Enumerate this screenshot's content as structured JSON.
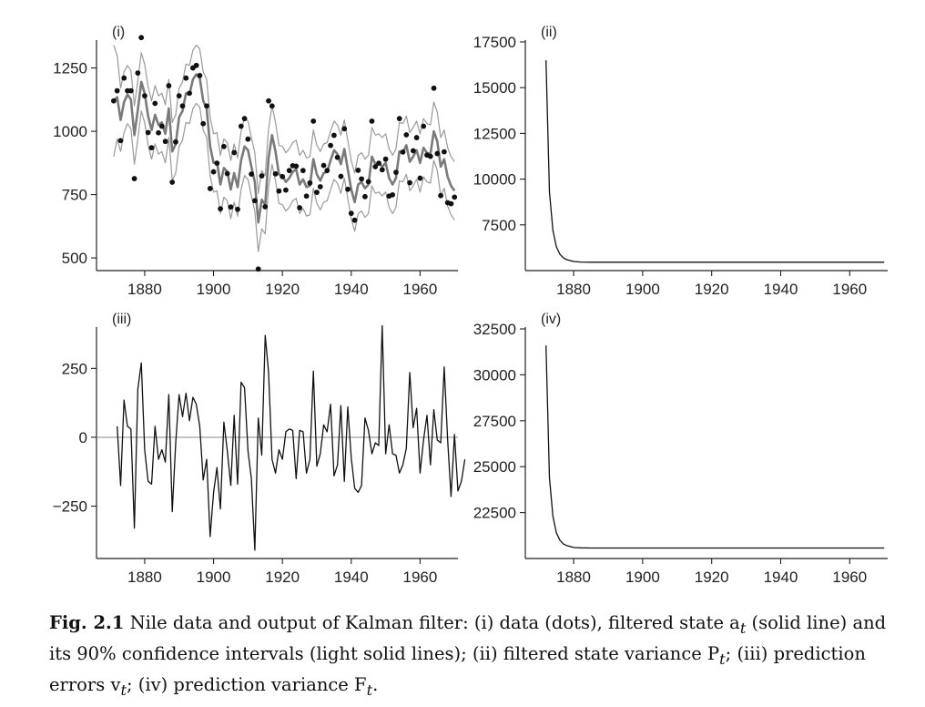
{
  "chart_data": [
    {
      "id": "i",
      "type": "scatter",
      "panel_label": "(i)",
      "title": "",
      "xlabel": "",
      "ylabel": "",
      "xlim": [
        1866,
        1971
      ],
      "ylim": [
        450,
        1360
      ],
      "xticks": [
        1880,
        1900,
        1920,
        1940,
        1960
      ],
      "xtick_labels": [
        "1880",
        "1900",
        "1920",
        "1940",
        "1960"
      ],
      "yticks": [
        500,
        750,
        1000,
        1250
      ],
      "ytick_labels": [
        "500",
        "750",
        "1000",
        "1250"
      ],
      "grid": false,
      "x_start": 1871,
      "series": [
        {
          "role": "data (dots)",
          "style": "dots",
          "color": "#111111",
          "values": [
            1120,
            1160,
            963,
            1210,
            1160,
            1160,
            813,
            1230,
            1370,
            1140,
            995,
            935,
            1110,
            994,
            1020,
            960,
            1180,
            799,
            958,
            1140,
            1100,
            1210,
            1150,
            1250,
            1260,
            1220,
            1030,
            1100,
            774,
            840,
            874,
            694,
            940,
            833,
            701,
            916,
            692,
            1020,
            1050,
            969,
            831,
            726,
            456,
            824,
            702,
            1120,
            1100,
            832,
            764,
            821,
            768,
            845,
            864,
            862,
            698,
            845,
            744,
            796,
            1040,
            759,
            781,
            865,
            845,
            944,
            984,
            897,
            822,
            1010,
            771,
            676,
            649,
            846,
            812,
            742,
            801,
            1040,
            860,
            874,
            848,
            890,
            744,
            749,
            838,
            1050,
            918,
            986,
            797,
            923,
            975,
            815,
            1020,
            906,
            901,
            1170,
            912,
            746,
            919,
            718,
            714,
            740
          ]
        },
        {
          "role": "filtered state a_t",
          "style": "thick-line",
          "color": "#7a7a7a",
          "values": [
            1120,
            1135,
            1045,
            1115,
            1145,
            1125,
            985,
            1085,
            1195,
            1150,
            1060,
            1005,
            1065,
            1025,
            1035,
            990,
            1090,
            920,
            950,
            1055,
            1080,
            1150,
            1145,
            1205,
            1225,
            1210,
            1120,
            1090,
            940,
            875,
            880,
            790,
            855,
            840,
            770,
            835,
            780,
            885,
            940,
            925,
            860,
            800,
            640,
            730,
            710,
            895,
            985,
            920,
            830,
            825,
            800,
            815,
            840,
            850,
            790,
            810,
            780,
            785,
            890,
            830,
            805,
            835,
            840,
            885,
            925,
            910,
            870,
            930,
            850,
            770,
            720,
            790,
            800,
            775,
            790,
            900,
            870,
            875,
            860,
            875,
            815,
            790,
            815,
            920,
            915,
            945,
            880,
            900,
            925,
            875,
            935,
            915,
            910,
            1000,
            960,
            860,
            890,
            820,
            785,
            765
          ]
        },
        {
          "role": "90% confidence upper",
          "style": "light-line",
          "color": "#9a9a9a",
          "values": [
            1340,
            1300,
            1170,
            1235,
            1260,
            1240,
            1100,
            1200,
            1310,
            1265,
            1175,
            1120,
            1180,
            1140,
            1150,
            1105,
            1205,
            1035,
            1065,
            1170,
            1195,
            1265,
            1260,
            1320,
            1340,
            1325,
            1235,
            1205,
            1055,
            990,
            995,
            905,
            970,
            955,
            885,
            950,
            895,
            1000,
            1055,
            1040,
            975,
            915,
            755,
            845,
            825,
            1010,
            1100,
            1035,
            945,
            940,
            915,
            930,
            955,
            965,
            905,
            925,
            895,
            900,
            1005,
            945,
            920,
            950,
            955,
            1000,
            1040,
            1025,
            985,
            1045,
            965,
            885,
            835,
            905,
            915,
            890,
            905,
            1015,
            985,
            990,
            975,
            990,
            930,
            905,
            930,
            1035,
            1030,
            1060,
            995,
            1015,
            1040,
            990,
            1050,
            1030,
            1025,
            1115,
            1075,
            975,
            1005,
            935,
            900,
            880
          ]
        },
        {
          "role": "90% confidence lower",
          "style": "light-line",
          "color": "#9a9a9a",
          "values": [
            900,
            970,
            920,
            995,
            1030,
            1010,
            870,
            970,
            1080,
            1035,
            945,
            890,
            950,
            910,
            920,
            875,
            975,
            805,
            835,
            940,
            965,
            1035,
            1030,
            1090,
            1110,
            1095,
            1005,
            975,
            825,
            760,
            765,
            675,
            740,
            725,
            655,
            720,
            665,
            770,
            825,
            810,
            745,
            685,
            525,
            615,
            595,
            780,
            870,
            805,
            715,
            710,
            685,
            700,
            725,
            735,
            675,
            695,
            665,
            670,
            775,
            715,
            690,
            720,
            725,
            770,
            810,
            795,
            755,
            815,
            735,
            655,
            605,
            675,
            685,
            660,
            675,
            785,
            755,
            760,
            745,
            760,
            700,
            675,
            700,
            805,
            800,
            830,
            765,
            785,
            810,
            760,
            820,
            800,
            795,
            885,
            845,
            745,
            775,
            705,
            670,
            650
          ]
        }
      ]
    },
    {
      "id": "ii",
      "type": "line",
      "panel_label": "(ii)",
      "title": "",
      "xlabel": "",
      "ylabel": "",
      "xlim": [
        1866,
        1971
      ],
      "ylim": [
        5000,
        17600
      ],
      "xticks": [
        1880,
        1900,
        1920,
        1940,
        1960
      ],
      "xtick_labels": [
        "1880",
        "1900",
        "1920",
        "1940",
        "1960"
      ],
      "yticks": [
        7500,
        10000,
        12500,
        15000,
        17500
      ],
      "ytick_labels": [
        "7500",
        "10000",
        "12500",
        "15000",
        "17500"
      ],
      "grid": false,
      "x": [
        1872,
        1873,
        1874,
        1875,
        1876,
        1877,
        1878,
        1879,
        1880,
        1882,
        1885,
        1890,
        1900,
        1920,
        1940,
        1960,
        1970
      ],
      "series": [
        {
          "color": "#111111",
          "values": [
            16500,
            9300,
            7200,
            6300,
            5900,
            5700,
            5600,
            5550,
            5500,
            5470,
            5460,
            5460,
            5460,
            5460,
            5460,
            5460,
            5460
          ]
        }
      ]
    },
    {
      "id": "iii",
      "type": "line",
      "panel_label": "(iii)",
      "title": "",
      "xlabel": "",
      "ylabel": "",
      "xlim": [
        1866,
        1971
      ],
      "ylim": [
        -440,
        400
      ],
      "xticks": [
        1880,
        1900,
        1920,
        1940,
        1960
      ],
      "xtick_labels": [
        "1880",
        "1900",
        "1920",
        "1940",
        "1960"
      ],
      "yticks": [
        -250,
        0,
        250
      ],
      "ytick_labels": [
        "−250",
        "0",
        "250"
      ],
      "zero_line": true,
      "grid": false,
      "x_start": 1872,
      "series": [
        {
          "color": "#111111",
          "values": [
            40,
            -175,
            135,
            40,
            30,
            -330,
            175,
            270,
            -45,
            -160,
            -170,
            40,
            -80,
            -45,
            -90,
            155,
            -270,
            -20,
            155,
            75,
            160,
            60,
            145,
            120,
            40,
            -155,
            -80,
            -360,
            -200,
            -110,
            -260,
            55,
            -50,
            -175,
            80,
            -170,
            200,
            180,
            -50,
            -150,
            -410,
            70,
            -65,
            370,
            235,
            -80,
            -130,
            -45,
            -80,
            20,
            30,
            25,
            -150,
            25,
            20,
            -130,
            -80,
            240,
            -105,
            -60,
            45,
            20,
            120,
            -140,
            -100,
            115,
            -160,
            110,
            -75,
            -185,
            -200,
            -175,
            70,
            25,
            -60,
            -20,
            -30,
            405,
            -60,
            45,
            -60,
            -65,
            -130,
            -100,
            -40,
            235,
            35,
            105,
            -130,
            -10,
            80,
            -100,
            100,
            -10,
            -20,
            255,
            -10,
            -215,
            10,
            -195,
            -160,
            -80
          ]
        }
      ]
    },
    {
      "id": "iv",
      "type": "line",
      "panel_label": "(iv)",
      "title": "",
      "xlabel": "",
      "ylabel": "",
      "xlim": [
        1866,
        1971
      ],
      "ylim": [
        20000,
        32600
      ],
      "xticks": [
        1880,
        1900,
        1920,
        1940,
        1960
      ],
      "xtick_labels": [
        "1880",
        "1900",
        "1920",
        "1940",
        "1960"
      ],
      "yticks": [
        22500,
        25000,
        27500,
        30000,
        32500
      ],
      "ytick_labels": [
        "22500",
        "25000",
        "27500",
        "30000",
        "32500"
      ],
      "grid": false,
      "x": [
        1872,
        1873,
        1874,
        1875,
        1876,
        1877,
        1878,
        1879,
        1880,
        1882,
        1885,
        1890,
        1900,
        1920,
        1940,
        1960,
        1970
      ],
      "series": [
        {
          "color": "#111111",
          "values": [
            31600,
            24400,
            22300,
            21400,
            21000,
            20800,
            20700,
            20650,
            20600,
            20580,
            20570,
            20570,
            20570,
            20570,
            20570,
            20570,
            20570
          ]
        }
      ]
    }
  ],
  "caption": {
    "figure_number": "Fig. 2.1",
    "line1": "Nile data and output of Kalman filter: (i) data (dots), filtered state a",
    "line1_sub": "t",
    "line1_end": " (solid",
    "line2": "line) and its 90% confidence intervals (light solid lines); (ii) filtered state variance P",
    "line2_sub": "t",
    "line2_end": ";",
    "line3": "(iii) prediction errors v",
    "line3_sub": "t",
    "line3_mid": "; (iv) prediction variance F",
    "line3_sub2": "t",
    "line3_end": "."
  }
}
